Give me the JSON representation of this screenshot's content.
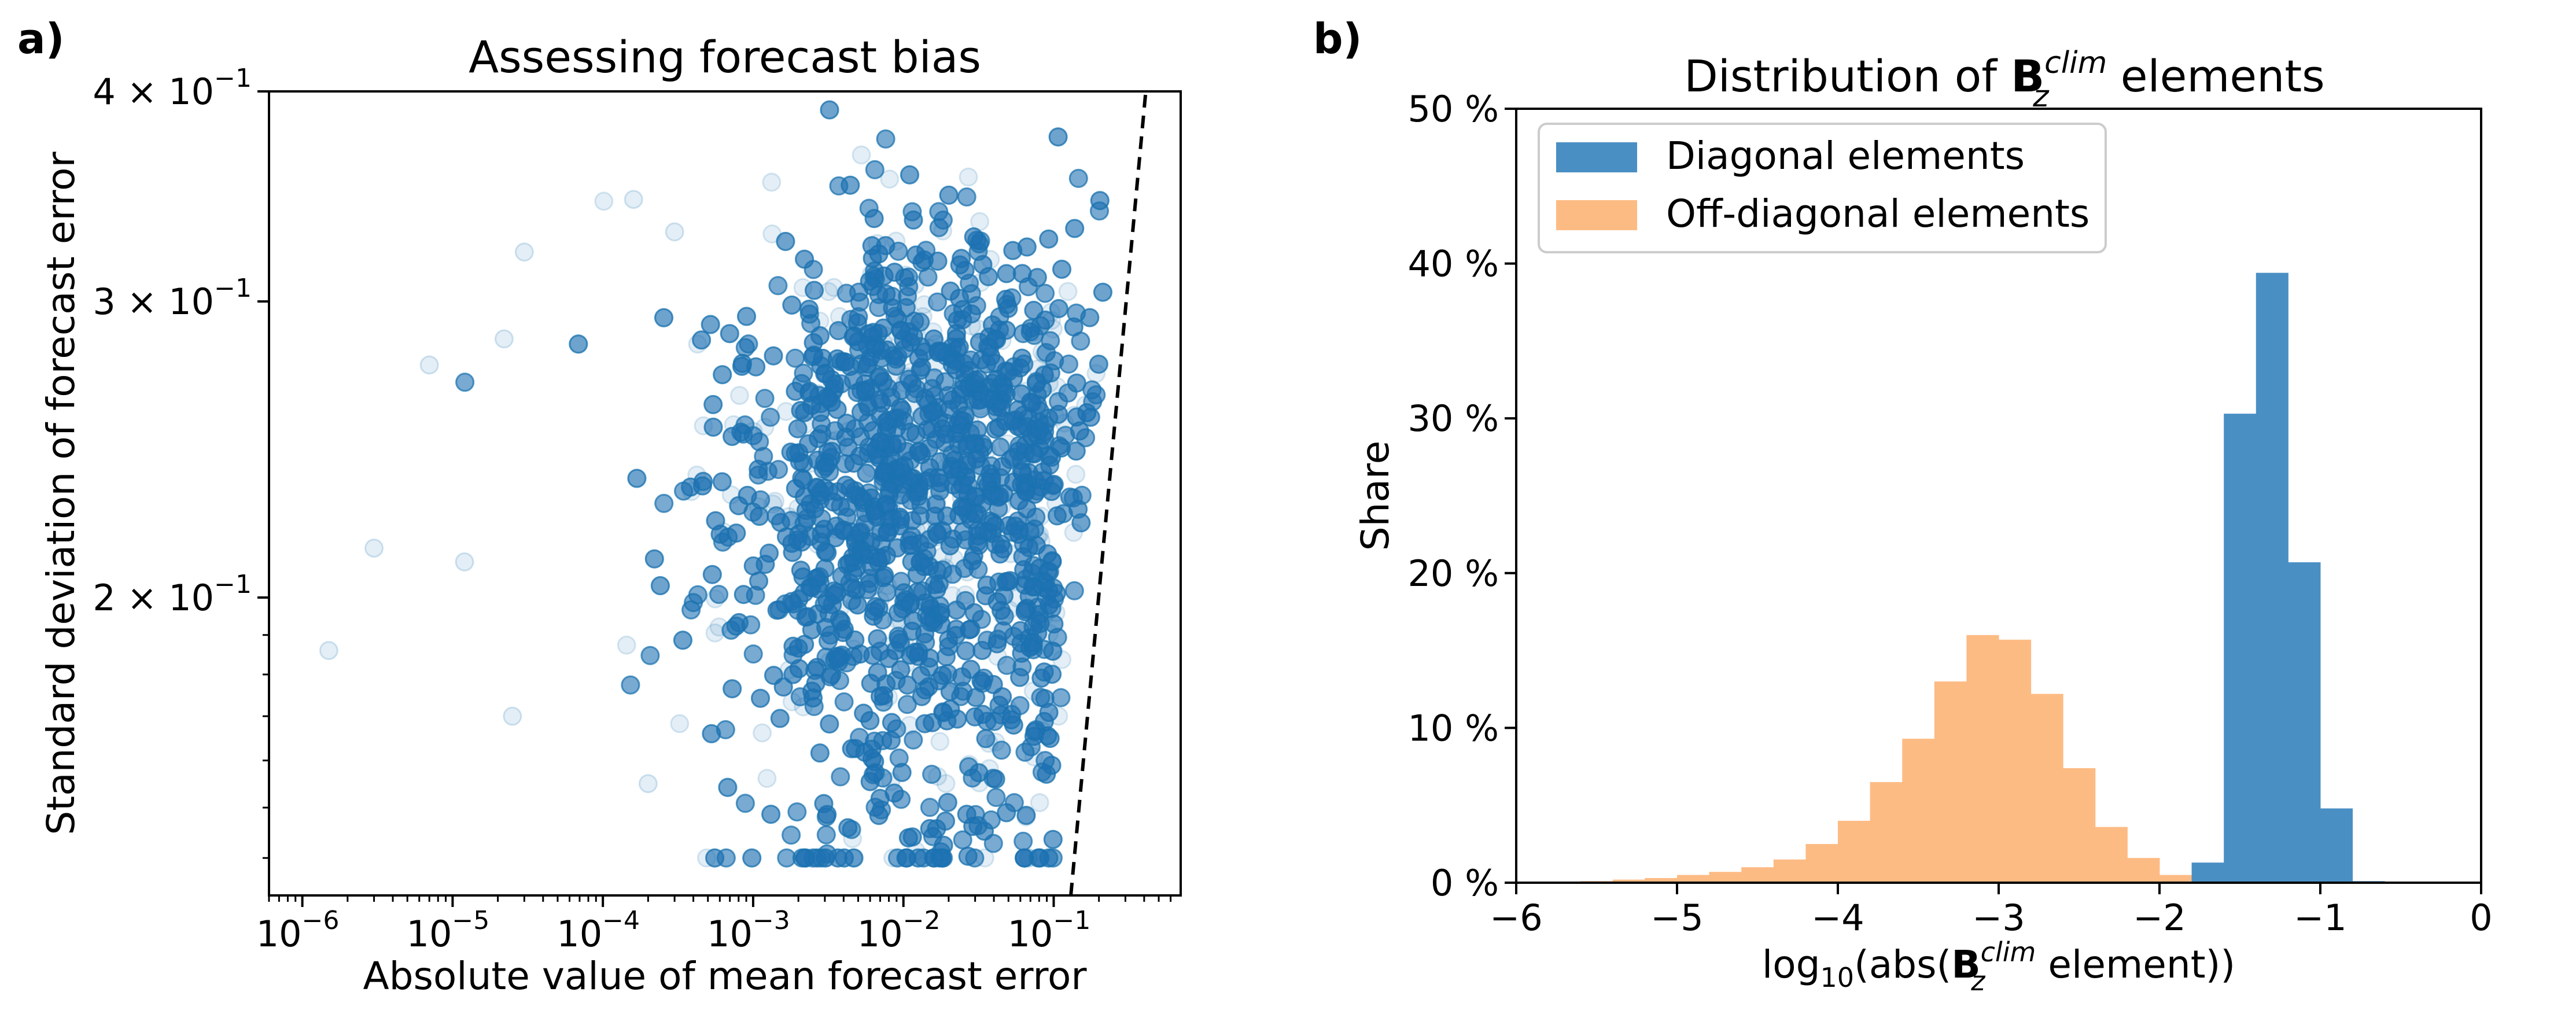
{
  "panel_labels": [
    "a)",
    "b)"
  ],
  "chart_data": [
    {
      "type": "scatter",
      "title": "Assessing forecast bias",
      "xlabel": "Absolute value of mean forecast error",
      "ylabel": "Standard deviation of forecast error",
      "xscale": "log",
      "yscale": "log",
      "xlim": [
        6e-07,
        0.7
      ],
      "ylim": [
        0.133,
        0.4
      ],
      "x_ticks": [
        {
          "value": 1e-06,
          "mant": "10",
          "exp": "−6"
        },
        {
          "value": 1e-05,
          "mant": "10",
          "exp": "−5"
        },
        {
          "value": 0.0001,
          "mant": "10",
          "exp": "−4"
        },
        {
          "value": 0.001,
          "mant": "10",
          "exp": "−3"
        },
        {
          "value": 0.01,
          "mant": "10",
          "exp": "−2"
        },
        {
          "value": 0.1,
          "mant": "10",
          "exp": "−1"
        }
      ],
      "y_ticks": [
        {
          "value": 0.2,
          "mant": "2 × 10",
          "exp": "−1"
        },
        {
          "value": 0.3,
          "mant": "3 × 10",
          "exp": "−1"
        },
        {
          "value": 0.4,
          "mant": "4 × 10",
          "exp": "−1"
        }
      ],
      "point_color": "#1f77b4",
      "point_alpha": 0.12,
      "n_points": 9000,
      "distribution": {
        "log10_mean_error_center": -1.8,
        "log10_mean_error_spread": 0.65,
        "std_center": 0.21,
        "std_range": [
          0.14,
          0.39
        ]
      },
      "reference_line": {
        "style": "dashed",
        "color": "#000000",
        "points": [
          [
            0.13,
            0.133
          ],
          [
            0.41,
            0.4
          ]
        ]
      },
      "outliers": [
        [
          1.5e-06,
          0.186
        ],
        [
          3e-06,
          0.214
        ],
        [
          7e-06,
          0.275
        ],
        [
          2.2e-05,
          0.285
        ],
        [
          3e-05,
          0.321
        ],
        [
          2.5e-05,
          0.17
        ],
        [
          1.2e-05,
          0.21
        ],
        [
          0.00016,
          0.345
        ],
        [
          0.0002,
          0.155
        ],
        [
          0.0003,
          0.33
        ]
      ]
    },
    {
      "type": "histogram",
      "title_prefix": "Distribution of ",
      "title_symbol": "B",
      "title_sub": "z",
      "title_sup": "clim",
      "title_suffix": " elements",
      "xlabel_prefix": "log",
      "xlabel_sub": "10",
      "xlabel_mid": "(abs(",
      "xlabel_symbol": "B",
      "xlabel_sym_sub": "z",
      "xlabel_sym_sup": "clim",
      "xlabel_suffix": " element))",
      "ylabel": "Share",
      "xlim": [
        -6,
        0
      ],
      "ylim": [
        0,
        50
      ],
      "x_ticks": [
        "−6",
        "−5",
        "−4",
        "−3",
        "−2",
        "−1",
        "0"
      ],
      "y_ticks": [
        "0 %",
        "10 %",
        "20 %",
        "30 %",
        "40 %",
        "50 %"
      ],
      "bin_width": 0.2,
      "series": [
        {
          "name": "Off-diagonal elements",
          "color": "#fdbb84",
          "bin_edges": [
            -5.6,
            -5.4,
            -5.2,
            -5.0,
            -4.8,
            -4.6,
            -4.4,
            -4.2,
            -4.0,
            -3.8,
            -3.6,
            -3.4,
            -3.2,
            -3.0,
            -2.8,
            -2.6,
            -2.4,
            -2.2,
            -2.0,
            -1.8
          ],
          "values": [
            0.1,
            0.2,
            0.3,
            0.5,
            0.7,
            1.0,
            1.5,
            2.5,
            4.0,
            6.5,
            9.3,
            13.0,
            16.0,
            15.7,
            12.2,
            7.4,
            3.6,
            1.6,
            0.5
          ]
        },
        {
          "name": "Diagonal elements",
          "color": "#4a8fc4",
          "bin_edges": [
            -1.8,
            -1.6,
            -1.4,
            -1.2,
            -1.0,
            -0.8,
            -0.6
          ],
          "values": [
            1.3,
            30.3,
            39.4,
            20.7,
            4.8,
            0.1
          ]
        }
      ],
      "legend": [
        "Diagonal elements",
        "Off-diagonal elements"
      ]
    }
  ]
}
